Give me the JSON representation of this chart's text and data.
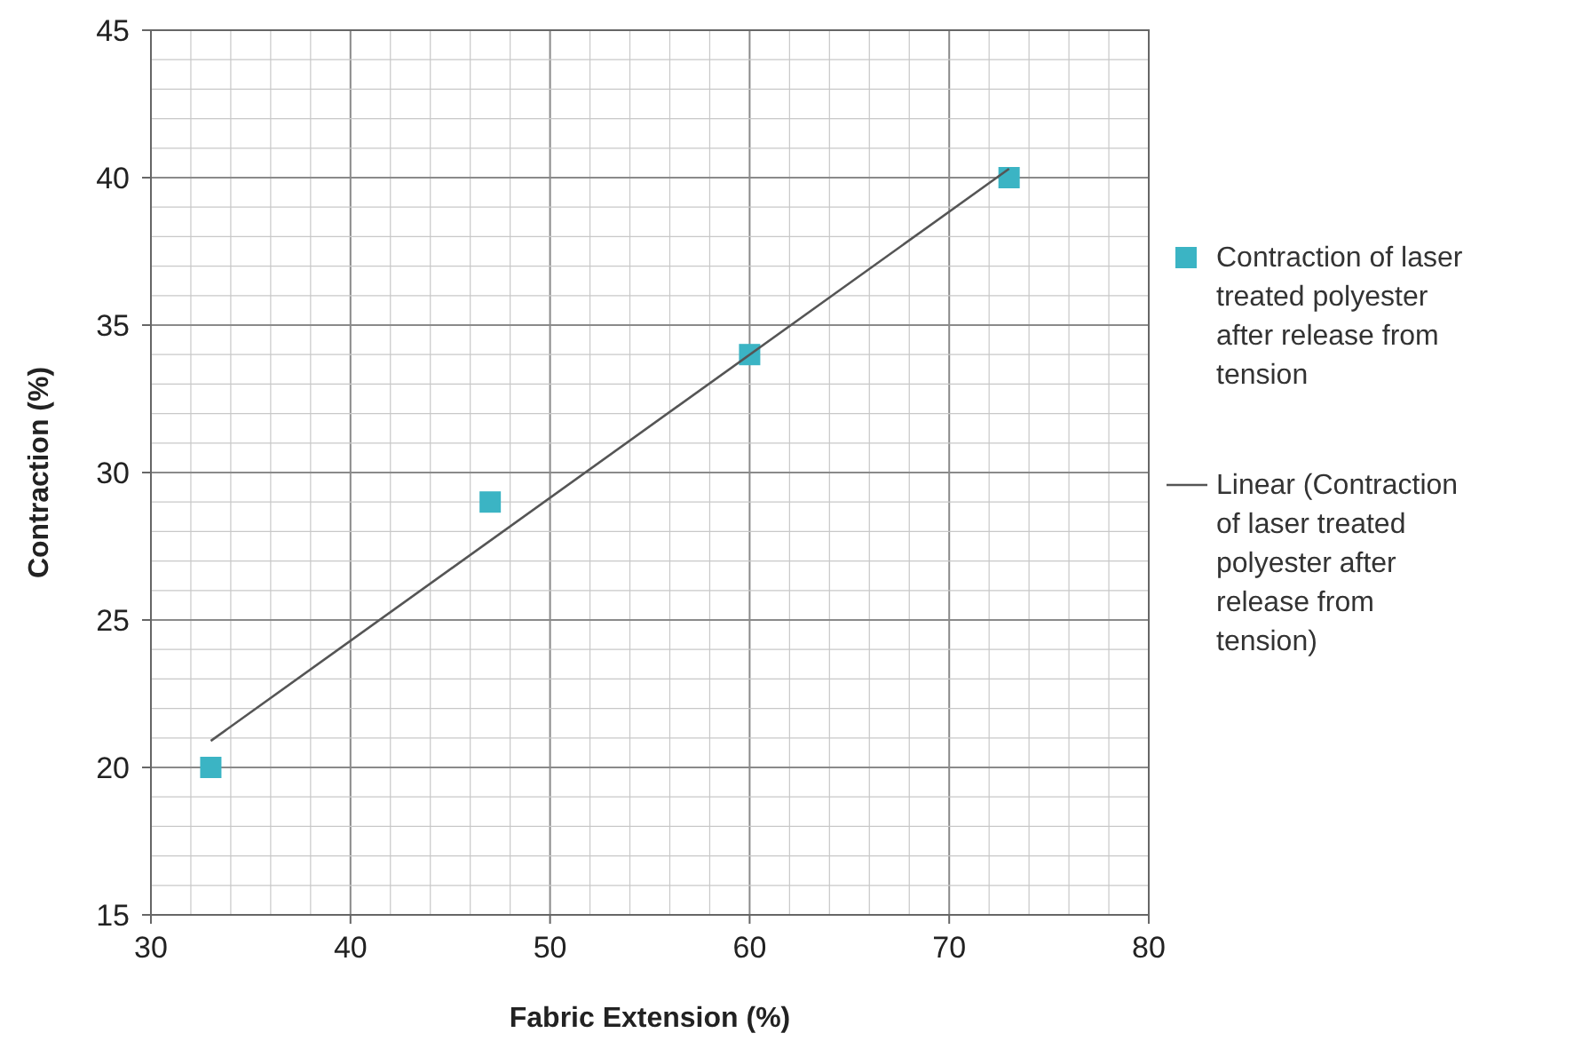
{
  "chart_data": {
    "type": "scatter",
    "xlabel": "Fabric Extension (%)",
    "ylabel": "Contraction (%)",
    "xlim": [
      30,
      80
    ],
    "ylim": [
      15,
      45
    ],
    "xticks": [
      30,
      {
        "value": 32,
        "label": null
      },
      {
        "value": 34,
        "label": null
      },
      {
        "value": 36,
        "label": null
      },
      {
        "value": 38,
        "label": null
      },
      40,
      {
        "value": 42,
        "label": null
      },
      {
        "value": 44,
        "label": null
      },
      {
        "value": 46,
        "label": null
      },
      {
        "value": 48,
        "label": null
      },
      50,
      {
        "value": 52,
        "label": null
      },
      {
        "value": 54,
        "label": null
      },
      {
        "value": 56,
        "label": null
      },
      {
        "value": 58,
        "label": null
      },
      60,
      {
        "value": 62,
        "label": null
      },
      {
        "value": 64,
        "label": null
      },
      {
        "value": 66,
        "label": null
      },
      {
        "value": 68,
        "label": null
      },
      70,
      {
        "value": 72,
        "label": null
      },
      {
        "value": 74,
        "label": null
      },
      {
        "value": 76,
        "label": null
      },
      {
        "value": 78,
        "label": null
      },
      80
    ],
    "yticks": [
      15,
      {
        "value": 16,
        "label": null
      },
      {
        "value": 17,
        "label": null
      },
      {
        "value": 18,
        "label": null
      },
      {
        "value": 19,
        "label": null
      },
      20,
      {
        "value": 21,
        "label": null
      },
      {
        "value": 22,
        "label": null
      },
      {
        "value": 23,
        "label": null
      },
      {
        "value": 24,
        "label": null
      },
      25,
      {
        "value": 26,
        "label": null
      },
      {
        "value": 27,
        "label": null
      },
      {
        "value": 28,
        "label": null
      },
      {
        "value": 29,
        "label": null
      },
      30,
      {
        "value": 31,
        "label": null
      },
      {
        "value": 32,
        "label": null
      },
      {
        "value": 33,
        "label": null
      },
      {
        "value": 34,
        "label": null
      },
      35,
      {
        "value": 36,
        "label": null
      },
      {
        "value": 37,
        "label": null
      },
      {
        "value": 38,
        "label": null
      },
      {
        "value": 39,
        "label": null
      },
      40,
      {
        "value": 41,
        "label": null
      },
      {
        "value": 42,
        "label": null
      },
      {
        "value": 43,
        "label": null
      },
      {
        "value": 44,
        "label": null
      },
      45
    ],
    "grid": true,
    "legend": "right",
    "series": [
      {
        "name": "Contraction of laser treated polyester after release from tension",
        "marker": "square",
        "color": "#3bb4c4",
        "x": [
          33,
          47,
          60,
          73
        ],
        "values": [
          20,
          29,
          34,
          40
        ]
      },
      {
        "name": "Linear  (Contraction of laser treated polyester after release from tension)",
        "type": "line",
        "marker": "none",
        "line_style": "solid",
        "color": "#555555",
        "x": [
          33,
          73
        ],
        "values": [
          20.9,
          40.3
        ]
      }
    ]
  }
}
